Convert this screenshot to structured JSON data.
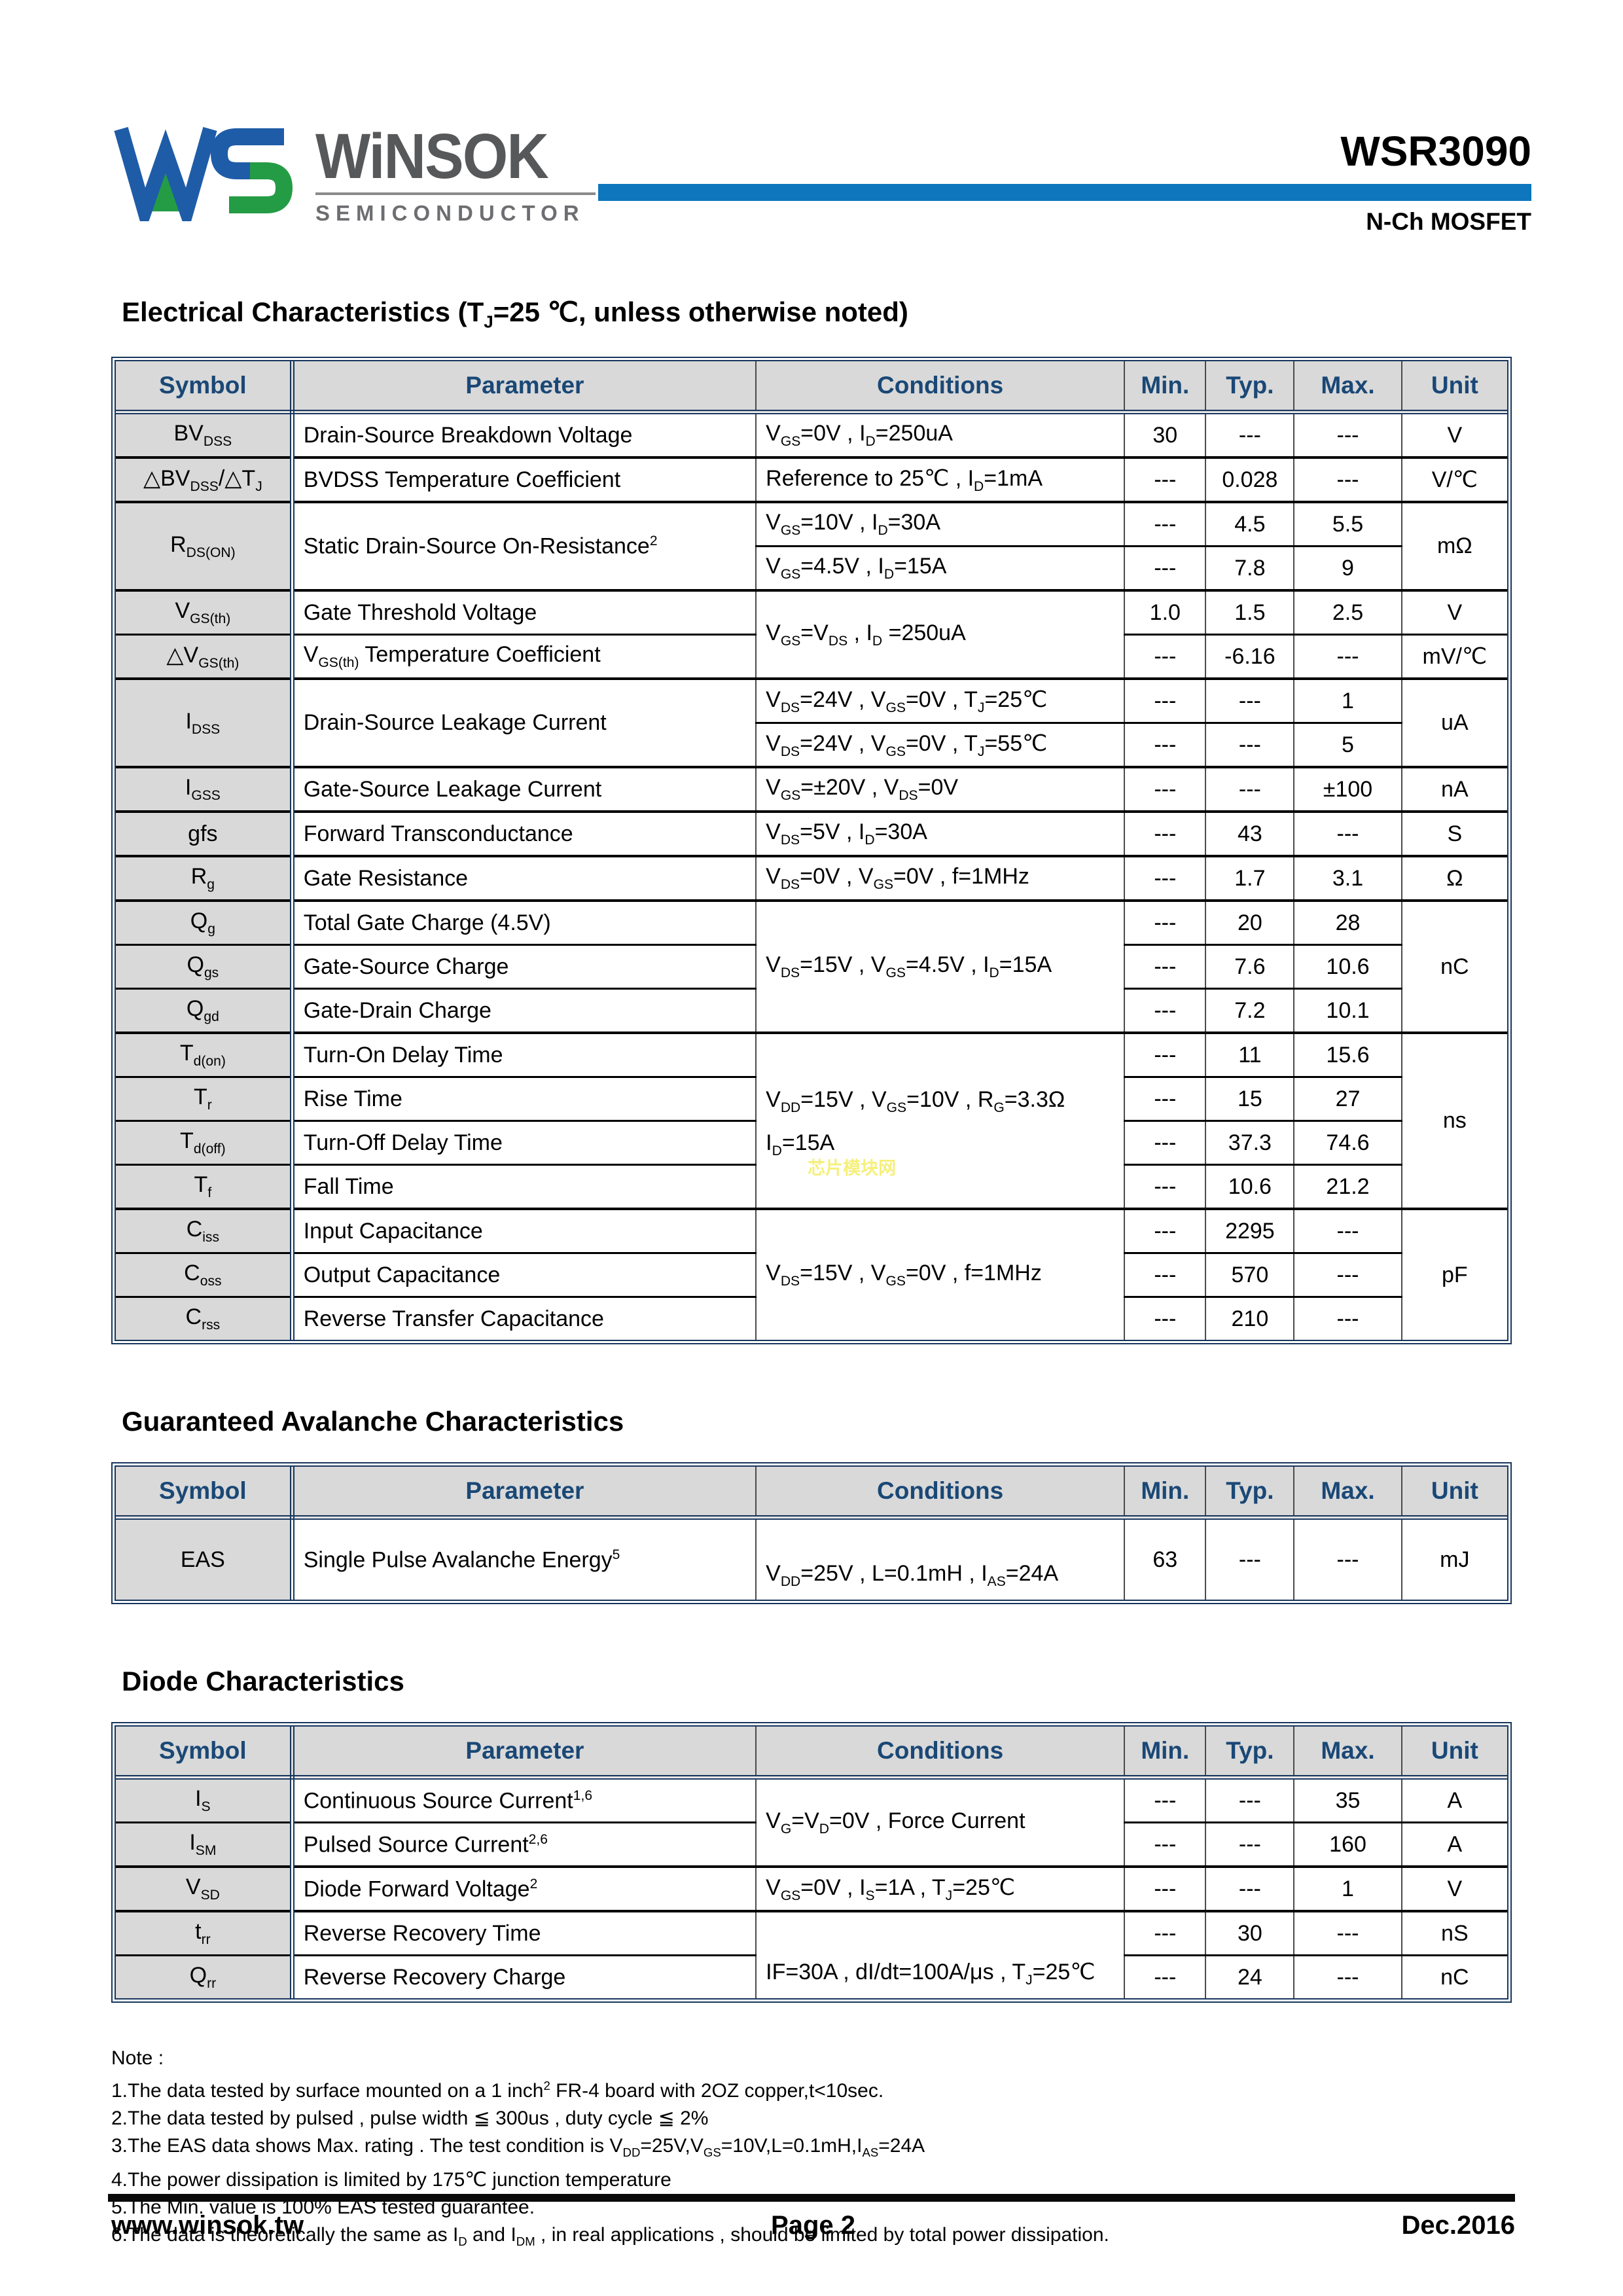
{
  "header": {
    "brand": "WiNSOK",
    "brand_sub": "SEMICONDUCTOR",
    "part_number": "WSR3090",
    "device_type": "N-Ch MOSFET"
  },
  "colors": {
    "accent_bar": "#0d76bd",
    "table_header_text": "#1a4876",
    "table_border": "#17365d",
    "cell_gray": "#d9d9d9",
    "logo_blue": "#1e5ca8",
    "logo_green": "#249c45",
    "watermark_yellow": "#f5f07c"
  },
  "sections": {
    "electrical": {
      "title": "Electrical Characteristics (T_{J}=25 ℃, unless otherwise noted)"
    },
    "avalanche": {
      "title": "Guaranteed Avalanche Characteristics"
    },
    "diode": {
      "title": "Diode Characteristics"
    }
  },
  "table_headers": [
    "Symbol",
    "Parameter",
    "Conditions",
    "Min.",
    "Typ.",
    "Max.",
    "Unit"
  ],
  "elec_rows": [
    {
      "g": true,
      "cells": [
        {
          "t": "BV_{DSS}",
          "c": "sym"
        },
        {
          "t": "Drain-Source Breakdown Voltage",
          "c": "par"
        },
        {
          "t": "V_{GS}=0V , I_{D}=250uA",
          "c": "cond"
        },
        {
          "t": "30",
          "c": "num"
        },
        {
          "t": "---",
          "c": "num"
        },
        {
          "t": "---",
          "c": "num"
        },
        {
          "t": "V",
          "c": "unit"
        }
      ]
    },
    {
      "g": true,
      "cells": [
        {
          "t": "△BV_{DSS}/△T_{J}",
          "c": "sym"
        },
        {
          "t": "BVDSS Temperature Coefficient",
          "c": "par"
        },
        {
          "t": "Reference to 25℃ , I_{D}=1mA",
          "c": "cond"
        },
        {
          "t": "---",
          "c": "num"
        },
        {
          "t": "0.028",
          "c": "num"
        },
        {
          "t": "---",
          "c": "num"
        },
        {
          "t": "V/℃",
          "c": "unit"
        }
      ]
    },
    {
      "g": true,
      "cells": [
        {
          "t": "R_{DS(ON)}",
          "c": "sym",
          "r": 2
        },
        {
          "t": "Static Drain-Source On-Resistance^{2}",
          "c": "par",
          "r": 2
        },
        {
          "t": "V_{GS}=10V , I_{D}=30A",
          "c": "cond"
        },
        {
          "t": "---",
          "c": "num"
        },
        {
          "t": "4.5",
          "c": "num"
        },
        {
          "t": "5.5",
          "c": "num"
        },
        {
          "t": "mΩ",
          "c": "unit",
          "r": 2
        }
      ]
    },
    {
      "cells": [
        {
          "t": "V_{GS}=4.5V , I_{D}=15A",
          "c": "cond"
        },
        {
          "t": "---",
          "c": "num"
        },
        {
          "t": "7.8",
          "c": "num"
        },
        {
          "t": "9",
          "c": "num"
        }
      ]
    },
    {
      "g": true,
      "cells": [
        {
          "t": "V_{GS(th)}",
          "c": "sym"
        },
        {
          "t": "Gate Threshold Voltage",
          "c": "par"
        },
        {
          "t": "V_{GS}=V_{DS} , I_{D} =250uA",
          "c": "cond",
          "r": 2
        },
        {
          "t": "1.0",
          "c": "num"
        },
        {
          "t": "1.5",
          "c": "num"
        },
        {
          "t": "2.5",
          "c": "num"
        },
        {
          "t": "V",
          "c": "unit"
        }
      ]
    },
    {
      "cells": [
        {
          "t": "△V_{GS(th)}",
          "c": "sym"
        },
        {
          "t": "V_{GS(th)} Temperature Coefficient",
          "c": "par"
        },
        {
          "t": "---",
          "c": "num"
        },
        {
          "t": "-6.16",
          "c": "num"
        },
        {
          "t": "---",
          "c": "num"
        },
        {
          "t": "mV/℃",
          "c": "unit"
        }
      ]
    },
    {
      "g": true,
      "cells": [
        {
          "t": "I_{DSS}",
          "c": "sym",
          "r": 2
        },
        {
          "t": "Drain-Source Leakage Current",
          "c": "par",
          "r": 2
        },
        {
          "t": "V_{DS}=24V , V_{GS}=0V , T_{J}=25℃",
          "c": "cond"
        },
        {
          "t": "---",
          "c": "num"
        },
        {
          "t": "---",
          "c": "num"
        },
        {
          "t": "1",
          "c": "num"
        },
        {
          "t": "uA",
          "c": "unit",
          "r": 2
        }
      ]
    },
    {
      "cells": [
        {
          "t": "V_{DS}=24V , V_{GS}=0V , T_{J}=55℃",
          "c": "cond"
        },
        {
          "t": "---",
          "c": "num"
        },
        {
          "t": "---",
          "c": "num"
        },
        {
          "t": "5",
          "c": "num"
        }
      ]
    },
    {
      "g": true,
      "cells": [
        {
          "t": "I_{GSS}",
          "c": "sym"
        },
        {
          "t": "Gate-Source Leakage Current",
          "c": "par"
        },
        {
          "t": "V_{GS}=±20V , V_{DS}=0V",
          "c": "cond"
        },
        {
          "t": "---",
          "c": "num"
        },
        {
          "t": "---",
          "c": "num"
        },
        {
          "t": "±100",
          "c": "num"
        },
        {
          "t": "nA",
          "c": "unit"
        }
      ]
    },
    {
      "g": true,
      "cells": [
        {
          "t": "gfs",
          "c": "sym"
        },
        {
          "t": "Forward Transconductance",
          "c": "par"
        },
        {
          "t": "V_{DS}=5V , I_{D}=30A",
          "c": "cond"
        },
        {
          "t": "---",
          "c": "num"
        },
        {
          "t": "43",
          "c": "num"
        },
        {
          "t": "---",
          "c": "num"
        },
        {
          "t": "S",
          "c": "unit"
        }
      ]
    },
    {
      "g": true,
      "cells": [
        {
          "t": "R_{g}",
          "c": "sym"
        },
        {
          "t": "Gate Resistance",
          "c": "par"
        },
        {
          "t": "V_{DS}=0V , V_{GS}=0V , f=1MHz",
          "c": "cond"
        },
        {
          "t": "---",
          "c": "num"
        },
        {
          "t": "1.7",
          "c": "num"
        },
        {
          "t": "3.1",
          "c": "num"
        },
        {
          "t": "Ω",
          "c": "unit"
        }
      ]
    },
    {
      "g": true,
      "cells": [
        {
          "t": "Q_{g}",
          "c": "sym"
        },
        {
          "t": "Total Gate Charge (4.5V)",
          "c": "par"
        },
        {
          "t": "V_{DS}=15V , V_{GS}=4.5V , I_{D}=15A",
          "c": "cond",
          "r": 3
        },
        {
          "t": "---",
          "c": "num"
        },
        {
          "t": "20",
          "c": "num"
        },
        {
          "t": "28",
          "c": "num"
        },
        {
          "t": "nC",
          "c": "unit",
          "r": 3
        }
      ]
    },
    {
      "cells": [
        {
          "t": "Q_{gs}",
          "c": "sym"
        },
        {
          "t": "Gate-Source Charge",
          "c": "par"
        },
        {
          "t": "---",
          "c": "num"
        },
        {
          "t": "7.6",
          "c": "num"
        },
        {
          "t": "10.6",
          "c": "num"
        }
      ]
    },
    {
      "cells": [
        {
          "t": "Q_{gd}",
          "c": "sym"
        },
        {
          "t": "Gate-Drain Charge",
          "c": "par"
        },
        {
          "t": "---",
          "c": "num"
        },
        {
          "t": "7.2",
          "c": "num"
        },
        {
          "t": "10.1",
          "c": "num"
        }
      ]
    },
    {
      "g": true,
      "cells": [
        {
          "t": "T_{d(on)}",
          "c": "sym"
        },
        {
          "t": "Turn-On Delay Time",
          "c": "par"
        },
        {
          "t": "V_{DD}=15V , V_{GS}=10V , R_{G}=3.3Ω\nI_{D}=15A",
          "c": "cond",
          "r": 4,
          "x": "spread",
          "wm": true
        },
        {
          "t": "---",
          "c": "num"
        },
        {
          "t": "11",
          "c": "num"
        },
        {
          "t": "15.6",
          "c": "num"
        },
        {
          "t": "ns",
          "c": "unit",
          "r": 4
        }
      ]
    },
    {
      "cells": [
        {
          "t": "T_{r}",
          "c": "sym"
        },
        {
          "t": "Rise Time",
          "c": "par"
        },
        {
          "t": "---",
          "c": "num"
        },
        {
          "t": "15",
          "c": "num"
        },
        {
          "t": "27",
          "c": "num"
        }
      ]
    },
    {
      "cells": [
        {
          "t": "T_{d(off)}",
          "c": "sym"
        },
        {
          "t": "Turn-Off Delay Time",
          "c": "par"
        },
        {
          "t": "---",
          "c": "num"
        },
        {
          "t": "37.3",
          "c": "num"
        },
        {
          "t": "74.6",
          "c": "num"
        }
      ]
    },
    {
      "cells": [
        {
          "t": "T_{f}",
          "c": "sym"
        },
        {
          "t": "Fall Time",
          "c": "par"
        },
        {
          "t": "---",
          "c": "num"
        },
        {
          "t": "10.6",
          "c": "num"
        },
        {
          "t": "21.2",
          "c": "num"
        }
      ]
    },
    {
      "g": true,
      "cells": [
        {
          "t": "C_{iss}",
          "c": "sym"
        },
        {
          "t": "Input Capacitance",
          "c": "par"
        },
        {
          "t": "V_{DS}=15V , V_{GS}=0V , f=1MHz",
          "c": "cond",
          "r": 3
        },
        {
          "t": "---",
          "c": "num"
        },
        {
          "t": "2295",
          "c": "num"
        },
        {
          "t": "---",
          "c": "num"
        },
        {
          "t": "pF",
          "c": "unit",
          "r": 3
        }
      ]
    },
    {
      "cells": [
        {
          "t": "C_{oss}",
          "c": "sym"
        },
        {
          "t": "Output Capacitance",
          "c": "par"
        },
        {
          "t": "---",
          "c": "num"
        },
        {
          "t": "570",
          "c": "num"
        },
        {
          "t": "---",
          "c": "num"
        }
      ]
    },
    {
      "cells": [
        {
          "t": "C_{rss}",
          "c": "sym"
        },
        {
          "t": "Reverse Transfer Capacitance",
          "c": "par"
        },
        {
          "t": "---",
          "c": "num"
        },
        {
          "t": "210",
          "c": "num"
        },
        {
          "t": "---",
          "c": "num"
        }
      ]
    }
  ],
  "avalanche_rows": [
    {
      "g": true,
      "cells": [
        {
          "t": "EAS",
          "c": "sym"
        },
        {
          "t": "Single Pulse Avalanche Energy^{5}",
          "c": "par"
        },
        {
          "t": "V_{DD}=25V , L=0.1mH , I_{AS}=24A",
          "c": "cond",
          "x": "low"
        },
        {
          "t": "63",
          "c": "num"
        },
        {
          "t": "---",
          "c": "num"
        },
        {
          "t": "---",
          "c": "num"
        },
        {
          "t": "mJ",
          "c": "unit"
        }
      ]
    }
  ],
  "diode_rows": [
    {
      "g": true,
      "cells": [
        {
          "t": "I_{S}",
          "c": "sym"
        },
        {
          "t": "Continuous Source Current^{1,6}",
          "c": "par"
        },
        {
          "t": "V_{G}=V_{D}=0V , Force Current",
          "c": "cond",
          "r": 2
        },
        {
          "t": "---",
          "c": "num"
        },
        {
          "t": "---",
          "c": "num"
        },
        {
          "t": "35",
          "c": "num"
        },
        {
          "t": "A",
          "c": "unit"
        }
      ]
    },
    {
      "cells": [
        {
          "t": "I_{SM}",
          "c": "sym"
        },
        {
          "t": "Pulsed Source Current^{2,6}",
          "c": "par"
        },
        {
          "t": "---",
          "c": "num"
        },
        {
          "t": "---",
          "c": "num"
        },
        {
          "t": "160",
          "c": "num"
        },
        {
          "t": "A",
          "c": "unit"
        }
      ]
    },
    {
      "g": true,
      "cells": [
        {
          "t": "V_{SD}",
          "c": "sym"
        },
        {
          "t": "Diode Forward Voltage^{2}",
          "c": "par"
        },
        {
          "t": "V_{GS}=0V , I_{S}=1A , T_{J}=25℃",
          "c": "cond"
        },
        {
          "t": "---",
          "c": "num"
        },
        {
          "t": "---",
          "c": "num"
        },
        {
          "t": "1",
          "c": "num"
        },
        {
          "t": "V",
          "c": "unit"
        }
      ]
    },
    {
      "g": true,
      "cells": [
        {
          "t": "t_{rr}",
          "c": "sym"
        },
        {
          "t": "Reverse Recovery Time",
          "c": "par"
        },
        {
          "t": "IF=30A , dI/dt=100A/μs , T_{J}=25℃",
          "c": "cond",
          "r": 2,
          "x": "low"
        },
        {
          "t": "---",
          "c": "num"
        },
        {
          "t": "30",
          "c": "num"
        },
        {
          "t": "---",
          "c": "num"
        },
        {
          "t": "nS",
          "c": "unit"
        }
      ]
    },
    {
      "cells": [
        {
          "t": "Q_{rr}",
          "c": "sym"
        },
        {
          "t": "Reverse Recovery Charge",
          "c": "par"
        },
        {
          "t": "---",
          "c": "num"
        },
        {
          "t": "24",
          "c": "num"
        },
        {
          "t": "---",
          "c": "num"
        },
        {
          "t": "nC",
          "c": "unit"
        }
      ]
    }
  ],
  "watermark": "芯片模块网",
  "notes": {
    "label": "Note :",
    "items": [
      "1.The data tested by surface mounted on a 1 inch^{2} FR-4 board with 2OZ copper,t<10sec.",
      "2.The data tested by pulsed , pulse width ≦ 300us , duty cycle ≦ 2%",
      "3.The EAS data shows Max. rating . The test condition is V_{DD}=25V,V_{GS}=10V,L=0.1mH,I_{AS}=24A",
      "4.The power dissipation is limited by 175℃  junction temperature",
      "5.The Min. value is 100% EAS tested guarantee.",
      "6.The data is theoretically the same as I_{D} and I_{DM} , in real applications , should be limited by total power dissipation."
    ]
  },
  "footer": {
    "website": "www.winsok.tw",
    "page": "Page 2",
    "date": "Dec.2016"
  }
}
